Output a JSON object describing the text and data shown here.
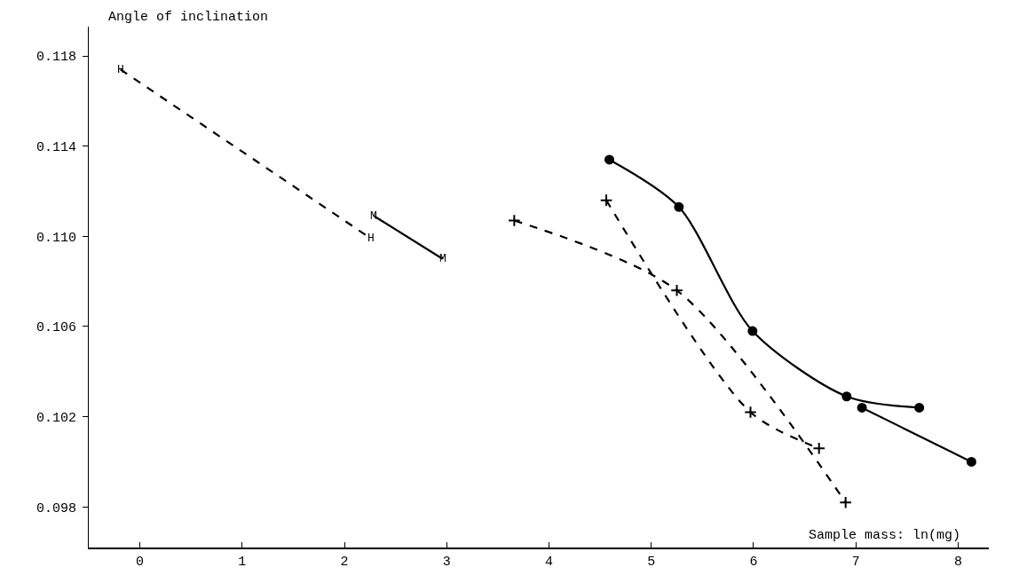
{
  "chart_data": {
    "type": "line",
    "xlabel": "Sample mass: ln(mg)",
    "ylabel": "Angle of inclination",
    "xlim": [
      -0.5,
      8.3
    ],
    "xticks": [
      0,
      1,
      2,
      3,
      4,
      5,
      6,
      7,
      8
    ],
    "ylim": [
      0.0962,
      0.1193
    ],
    "yticks": [
      0.098,
      0.102,
      0.106,
      {
        "value": 0.11,
        "label": "0.110"
      },
      0.114,
      0.118
    ],
    "grid": false,
    "series": [
      {
        "color": "#000000",
        "line_style": "dashed",
        "marker": "none",
        "x": [
          -0.19,
          2.26
        ],
        "values": [
          0.1174,
          0.1099
        ]
      },
      {
        "color": "#000000",
        "line_style": "solid",
        "marker": "none",
        "x": [
          2.29,
          2.96
        ],
        "values": [
          0.1109,
          0.109
        ]
      },
      {
        "color": "#000000",
        "line_style": "dashed",
        "marker": "cross",
        "x": [
          3.66,
          5.25,
          6.9
        ],
        "values": [
          0.1107,
          0.1076,
          0.0982
        ]
      },
      {
        "color": "#000000",
        "line_style": "dashed",
        "marker": "cross",
        "x": [
          4.56,
          5.97,
          6.64
        ],
        "values": [
          0.1116,
          0.1022,
          0.1006
        ]
      },
      {
        "color": "#000000",
        "line_style": "solid",
        "marker": "circle",
        "x": [
          4.59,
          5.27,
          5.99,
          6.91,
          7.62
        ],
        "values": [
          0.1134,
          0.1113,
          0.1058,
          0.1029,
          0.1024
        ]
      },
      {
        "color": "#000000",
        "line_style": "solid",
        "marker": "circle",
        "x": [
          7.06,
          8.13
        ],
        "values": [
          0.1024,
          0.1
        ]
      }
    ],
    "annotations": [
      {
        "text": "H",
        "x": -0.19,
        "y": 0.1174
      },
      {
        "text": "H",
        "x": 2.26,
        "y": 0.1099
      },
      {
        "text": "M",
        "x": 2.29,
        "y": 0.1109
      },
      {
        "text": "M",
        "x": 2.96,
        "y": 0.109
      }
    ]
  }
}
